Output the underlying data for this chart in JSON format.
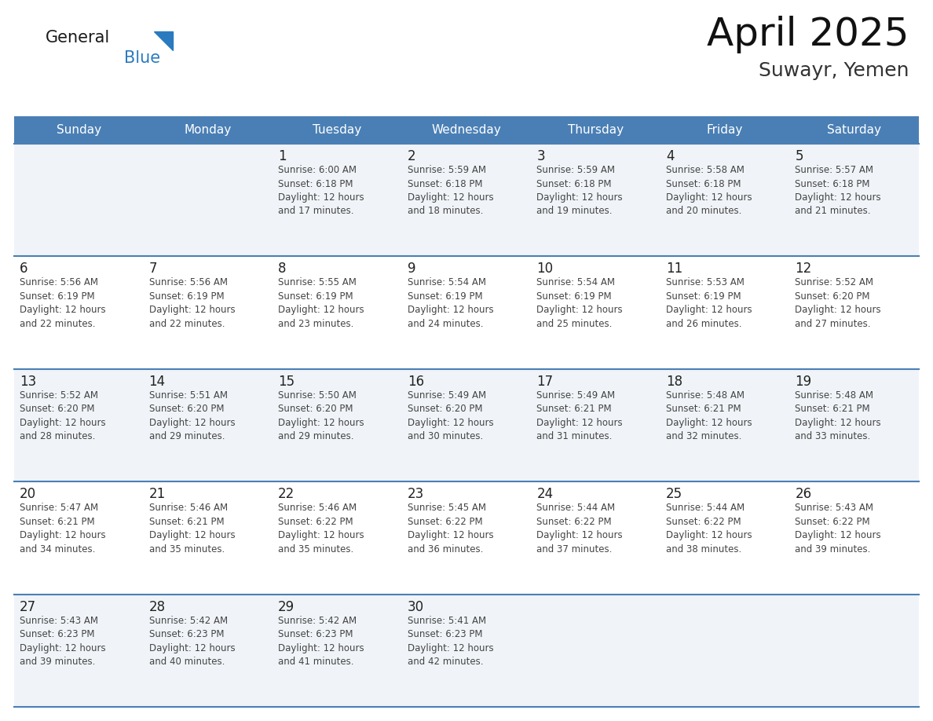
{
  "title": "April 2025",
  "subtitle": "Suwayr, Yemen",
  "header_bg": "#4a7fb5",
  "header_text": "#ffffff",
  "days_of_week": [
    "Sunday",
    "Monday",
    "Tuesday",
    "Wednesday",
    "Thursday",
    "Friday",
    "Saturday"
  ],
  "row_bg_odd": "#f0f4f8",
  "row_bg_even": "#ffffff",
  "cell_border_color": "#4a7fb5",
  "day_num_color": "#222222",
  "text_color": "#444444",
  "logo_general_color": "#1a1a1a",
  "logo_blue_color": "#2a7abf",
  "title_color": "#111111",
  "subtitle_color": "#333333",
  "calendar": [
    [
      {
        "day": null,
        "info": null
      },
      {
        "day": null,
        "info": null
      },
      {
        "day": 1,
        "info": "Sunrise: 6:00 AM\nSunset: 6:18 PM\nDaylight: 12 hours\nand 17 minutes."
      },
      {
        "day": 2,
        "info": "Sunrise: 5:59 AM\nSunset: 6:18 PM\nDaylight: 12 hours\nand 18 minutes."
      },
      {
        "day": 3,
        "info": "Sunrise: 5:59 AM\nSunset: 6:18 PM\nDaylight: 12 hours\nand 19 minutes."
      },
      {
        "day": 4,
        "info": "Sunrise: 5:58 AM\nSunset: 6:18 PM\nDaylight: 12 hours\nand 20 minutes."
      },
      {
        "day": 5,
        "info": "Sunrise: 5:57 AM\nSunset: 6:18 PM\nDaylight: 12 hours\nand 21 minutes."
      }
    ],
    [
      {
        "day": 6,
        "info": "Sunrise: 5:56 AM\nSunset: 6:19 PM\nDaylight: 12 hours\nand 22 minutes."
      },
      {
        "day": 7,
        "info": "Sunrise: 5:56 AM\nSunset: 6:19 PM\nDaylight: 12 hours\nand 22 minutes."
      },
      {
        "day": 8,
        "info": "Sunrise: 5:55 AM\nSunset: 6:19 PM\nDaylight: 12 hours\nand 23 minutes."
      },
      {
        "day": 9,
        "info": "Sunrise: 5:54 AM\nSunset: 6:19 PM\nDaylight: 12 hours\nand 24 minutes."
      },
      {
        "day": 10,
        "info": "Sunrise: 5:54 AM\nSunset: 6:19 PM\nDaylight: 12 hours\nand 25 minutes."
      },
      {
        "day": 11,
        "info": "Sunrise: 5:53 AM\nSunset: 6:19 PM\nDaylight: 12 hours\nand 26 minutes."
      },
      {
        "day": 12,
        "info": "Sunrise: 5:52 AM\nSunset: 6:20 PM\nDaylight: 12 hours\nand 27 minutes."
      }
    ],
    [
      {
        "day": 13,
        "info": "Sunrise: 5:52 AM\nSunset: 6:20 PM\nDaylight: 12 hours\nand 28 minutes."
      },
      {
        "day": 14,
        "info": "Sunrise: 5:51 AM\nSunset: 6:20 PM\nDaylight: 12 hours\nand 29 minutes."
      },
      {
        "day": 15,
        "info": "Sunrise: 5:50 AM\nSunset: 6:20 PM\nDaylight: 12 hours\nand 29 minutes."
      },
      {
        "day": 16,
        "info": "Sunrise: 5:49 AM\nSunset: 6:20 PM\nDaylight: 12 hours\nand 30 minutes."
      },
      {
        "day": 17,
        "info": "Sunrise: 5:49 AM\nSunset: 6:21 PM\nDaylight: 12 hours\nand 31 minutes."
      },
      {
        "day": 18,
        "info": "Sunrise: 5:48 AM\nSunset: 6:21 PM\nDaylight: 12 hours\nand 32 minutes."
      },
      {
        "day": 19,
        "info": "Sunrise: 5:48 AM\nSunset: 6:21 PM\nDaylight: 12 hours\nand 33 minutes."
      }
    ],
    [
      {
        "day": 20,
        "info": "Sunrise: 5:47 AM\nSunset: 6:21 PM\nDaylight: 12 hours\nand 34 minutes."
      },
      {
        "day": 21,
        "info": "Sunrise: 5:46 AM\nSunset: 6:21 PM\nDaylight: 12 hours\nand 35 minutes."
      },
      {
        "day": 22,
        "info": "Sunrise: 5:46 AM\nSunset: 6:22 PM\nDaylight: 12 hours\nand 35 minutes."
      },
      {
        "day": 23,
        "info": "Sunrise: 5:45 AM\nSunset: 6:22 PM\nDaylight: 12 hours\nand 36 minutes."
      },
      {
        "day": 24,
        "info": "Sunrise: 5:44 AM\nSunset: 6:22 PM\nDaylight: 12 hours\nand 37 minutes."
      },
      {
        "day": 25,
        "info": "Sunrise: 5:44 AM\nSunset: 6:22 PM\nDaylight: 12 hours\nand 38 minutes."
      },
      {
        "day": 26,
        "info": "Sunrise: 5:43 AM\nSunset: 6:22 PM\nDaylight: 12 hours\nand 39 minutes."
      }
    ],
    [
      {
        "day": 27,
        "info": "Sunrise: 5:43 AM\nSunset: 6:23 PM\nDaylight: 12 hours\nand 39 minutes."
      },
      {
        "day": 28,
        "info": "Sunrise: 5:42 AM\nSunset: 6:23 PM\nDaylight: 12 hours\nand 40 minutes."
      },
      {
        "day": 29,
        "info": "Sunrise: 5:42 AM\nSunset: 6:23 PM\nDaylight: 12 hours\nand 41 minutes."
      },
      {
        "day": 30,
        "info": "Sunrise: 5:41 AM\nSunset: 6:23 PM\nDaylight: 12 hours\nand 42 minutes."
      },
      {
        "day": null,
        "info": null
      },
      {
        "day": null,
        "info": null
      },
      {
        "day": null,
        "info": null
      }
    ]
  ]
}
